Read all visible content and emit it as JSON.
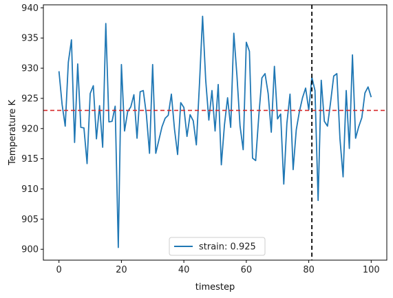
{
  "chart_data": {
    "type": "line",
    "xlabel": "timestep",
    "ylabel": "Temperature K",
    "xlim": [
      -5,
      105
    ],
    "ylim": [
      898.2,
      940.5
    ],
    "xticks": [
      0,
      20,
      40,
      60,
      80,
      100
    ],
    "yticks": [
      900,
      905,
      910,
      915,
      920,
      925,
      930,
      935,
      940
    ],
    "grid": false,
    "legend_position": "bottom-center",
    "series": [
      {
        "name": "strain: 0.925",
        "color": "#1f77b4",
        "x": [
          0,
          1,
          2,
          3,
          4,
          5,
          6,
          7,
          8,
          9,
          10,
          11,
          12,
          13,
          14,
          15,
          16,
          17,
          18,
          19,
          20,
          21,
          22,
          23,
          24,
          25,
          26,
          27,
          28,
          29,
          30,
          31,
          32,
          33,
          34,
          35,
          36,
          37,
          38,
          39,
          40,
          41,
          42,
          43,
          44,
          45,
          46,
          47,
          48,
          49,
          50,
          51,
          52,
          53,
          54,
          55,
          56,
          57,
          58,
          59,
          60,
          61,
          62,
          63,
          64,
          65,
          66,
          67,
          68,
          69,
          70,
          71,
          72,
          73,
          74,
          75,
          76,
          77,
          78,
          79,
          80,
          81,
          82,
          83,
          84,
          85,
          86,
          87,
          88,
          89,
          90,
          91,
          92,
          93,
          94,
          95,
          96,
          97,
          98,
          99,
          100
        ],
        "y": [
          929.5,
          924.0,
          920.4,
          931.0,
          934.7,
          917.7,
          930.7,
          920.2,
          920.1,
          914.2,
          925.8,
          927.1,
          918.3,
          923.8,
          916.9,
          937.4,
          921.1,
          921.2,
          923.7,
          900.3,
          930.6,
          919.6,
          922.8,
          923.6,
          925.6,
          918.4,
          926.1,
          926.3,
          922.3,
          915.9,
          930.6,
          915.9,
          918.1,
          920.3,
          921.7,
          922.2,
          925.7,
          919.9,
          915.7,
          924.3,
          923.5,
          918.7,
          922.3,
          921.3,
          917.3,
          927.4,
          938.6,
          928.0,
          921.4,
          926.3,
          919.6,
          927.3,
          914.0,
          920.6,
          925.1,
          920.2,
          935.8,
          928.8,
          920.4,
          916.5,
          934.3,
          932.8,
          915.1,
          914.7,
          922.1,
          928.4,
          929.1,
          925.8,
          919.4,
          930.3,
          921.6,
          922.4,
          910.8,
          920.9,
          925.7,
          913.2,
          919.8,
          922.8,
          925.1,
          926.7,
          923.1,
          928.5,
          926.3,
          908.1,
          928.0,
          921.2,
          920.4,
          924.4,
          928.7,
          929.1,
          918.3,
          912.0,
          926.3,
          916.7,
          932.2,
          918.4,
          920.3,
          921.8,
          925.9,
          926.9,
          925.2
        ]
      }
    ],
    "hline": {
      "y": 923.0,
      "color": "#d62728",
      "style": "dashed"
    },
    "vline": {
      "x": 81,
      "color": "#000000",
      "style": "dashed"
    }
  }
}
